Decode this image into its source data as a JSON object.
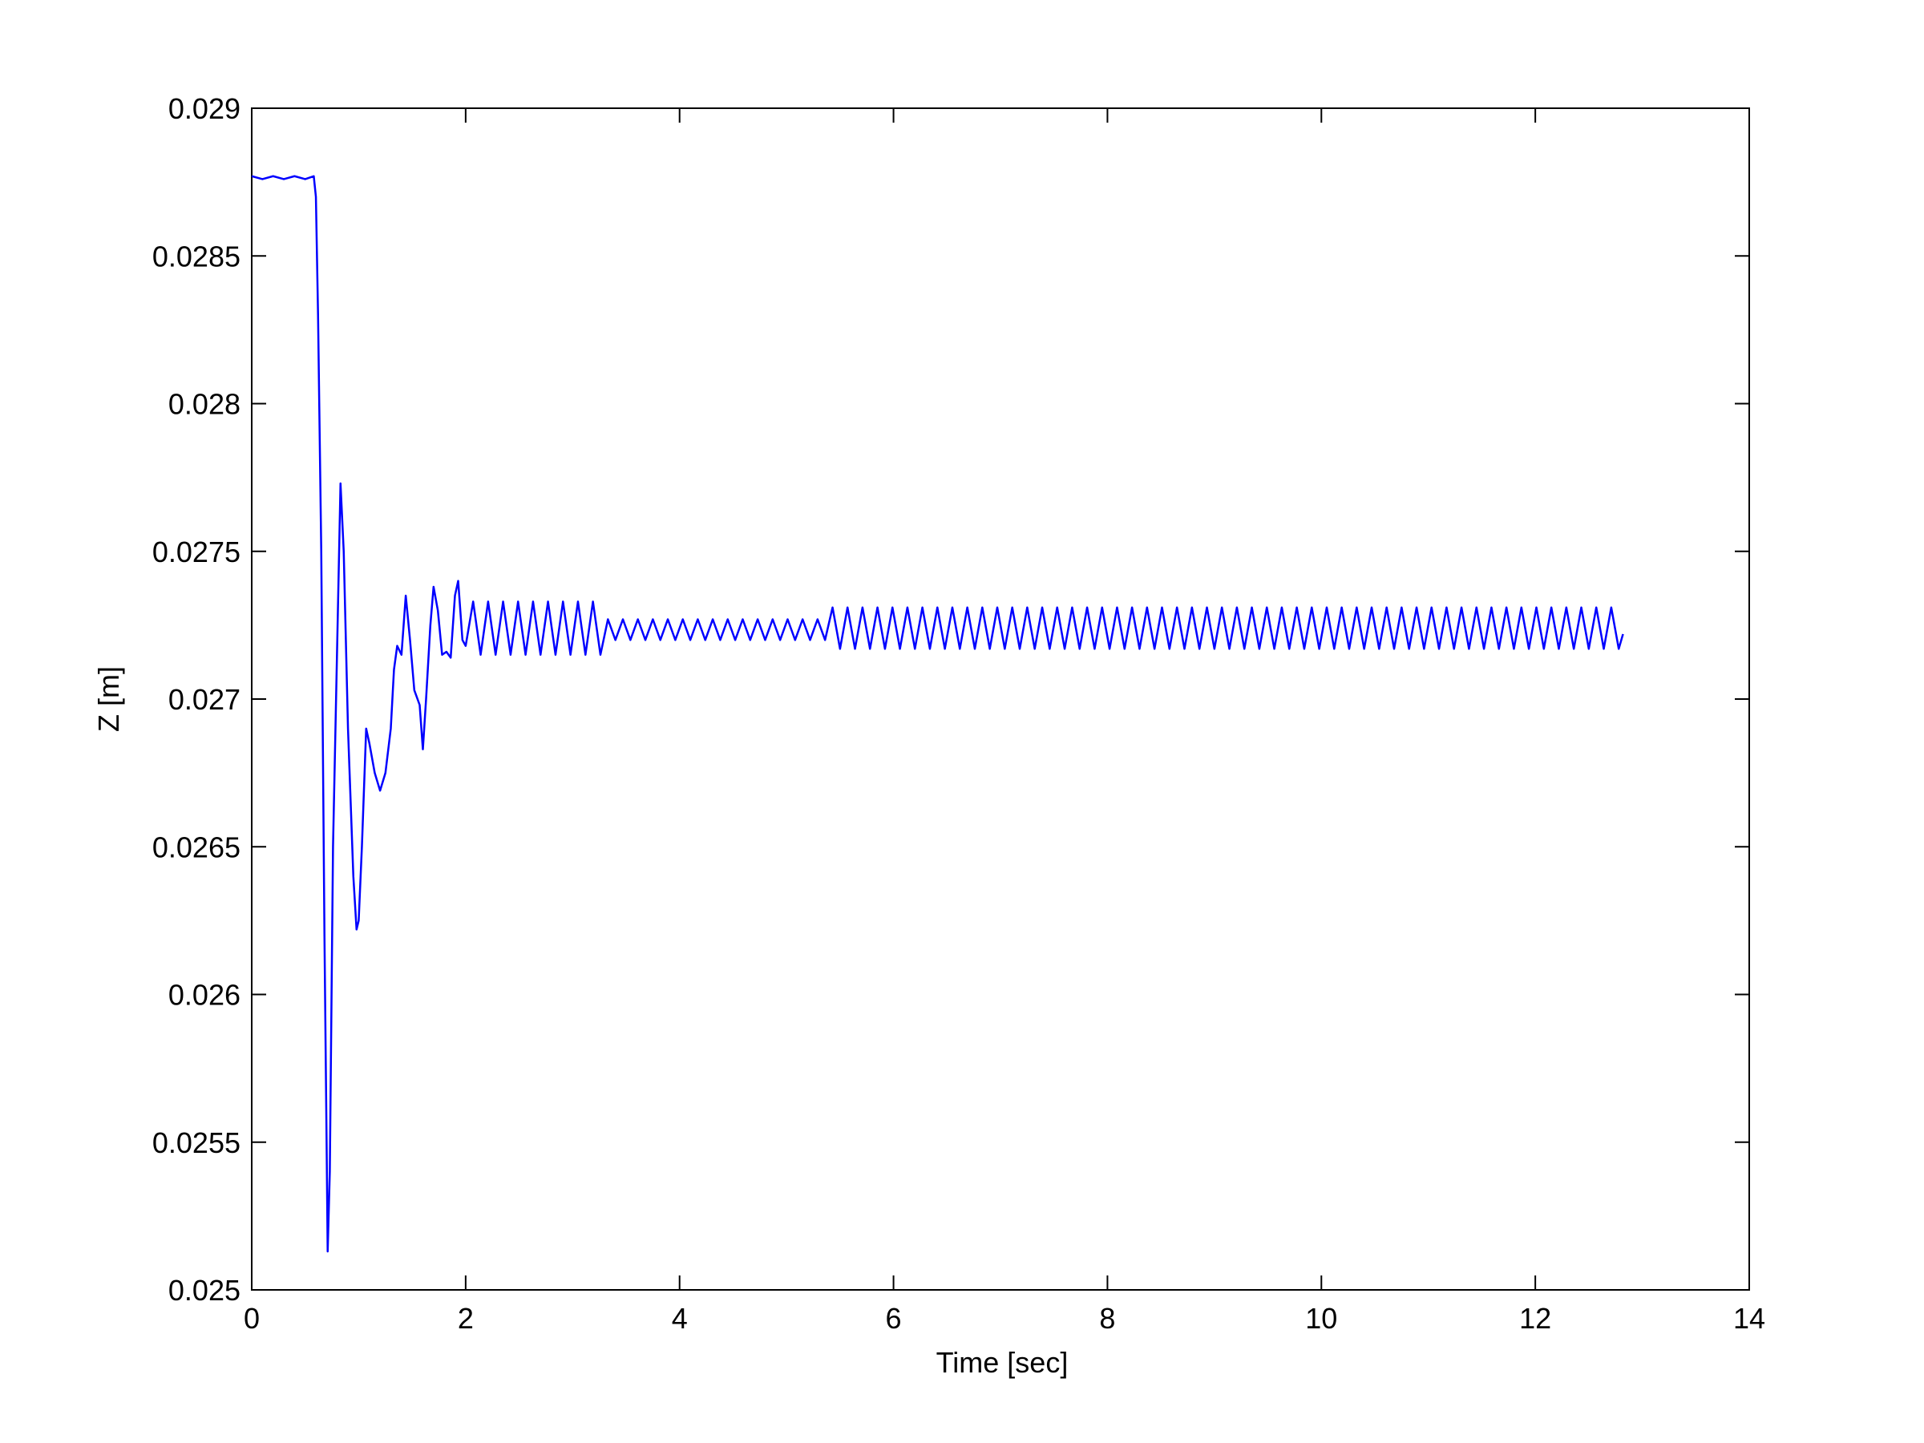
{
  "chart_data": {
    "type": "line",
    "xlabel": "Time [sec]",
    "ylabel": "Z [m]",
    "xlim": [
      0,
      14
    ],
    "xticks": [
      0,
      2,
      4,
      6,
      8,
      10,
      12,
      14
    ],
    "ylim": [
      0.025,
      0.029
    ],
    "yticks": [
      0.025,
      0.0255,
      0.026,
      0.0265,
      0.027,
      0.0275,
      0.028,
      0.0285,
      0.029
    ],
    "grid": false,
    "series": [
      {
        "color": "#0000ff",
        "x": [
          0,
          0.1,
          0.2,
          0.3,
          0.4,
          0.5,
          0.58,
          0.6,
          0.62,
          0.65,
          0.68,
          0.7,
          0.71,
          0.73,
          0.76,
          0.8,
          0.83,
          0.86,
          0.9,
          0.95,
          0.98,
          1.0,
          1.03,
          1.07,
          1.1,
          1.15,
          1.2,
          1.25,
          1.3,
          1.33,
          1.36,
          1.4,
          1.44,
          1.48,
          1.52,
          1.57,
          1.6,
          1.63,
          1.67,
          1.7,
          1.74,
          1.78,
          1.82,
          1.86,
          1.9,
          1.93,
          1.97,
          2.0,
          2.07,
          2.14,
          2.21,
          2.28,
          2.35,
          2.42,
          2.49,
          2.56,
          2.63,
          2.7,
          2.77,
          2.84,
          2.91,
          2.98,
          3.05,
          3.12,
          3.19,
          3.26,
          3.33,
          3.4,
          3.47,
          3.54,
          3.61,
          3.68,
          3.75,
          3.82,
          3.89,
          3.96,
          4.03,
          4.1,
          4.17,
          4.24,
          4.31,
          4.38,
          4.45,
          4.52,
          4.59,
          4.66,
          4.73,
          4.8,
          4.87,
          4.94,
          5.01,
          5.08,
          5.15,
          5.22,
          5.29,
          5.36,
          5.43,
          5.5,
          5.57,
          5.64,
          5.71,
          5.78,
          5.85,
          5.92,
          5.99,
          6.06,
          6.13,
          6.2,
          6.27,
          6.34,
          6.41,
          6.48,
          6.55,
          6.62,
          6.69,
          6.76,
          6.83,
          6.9,
          6.97,
          7.04,
          7.11,
          7.18,
          7.25,
          7.32,
          7.39,
          7.46,
          7.53,
          7.6,
          7.67,
          7.74,
          7.81,
          7.88,
          7.95,
          8.02,
          8.09,
          8.16,
          8.23,
          8.3,
          8.37,
          8.44,
          8.51,
          8.58,
          8.65,
          8.72,
          8.79,
          8.86,
          8.93,
          9.0,
          9.07,
          9.14,
          9.21,
          9.28,
          9.35,
          9.42,
          9.49,
          9.56,
          9.63,
          9.7,
          9.77,
          9.84,
          9.91,
          9.98,
          10.05,
          10.12,
          10.19,
          10.26,
          10.33,
          10.4,
          10.47,
          10.54,
          10.61,
          10.68,
          10.75,
          10.82,
          10.89,
          10.96,
          11.03,
          11.1,
          11.17,
          11.24,
          11.31,
          11.38,
          11.45,
          11.52,
          11.59,
          11.66,
          11.73,
          11.8,
          11.87,
          11.94,
          12.01,
          12.08,
          12.15,
          12.22,
          12.29,
          12.36,
          12.43,
          12.5,
          12.57,
          12.64,
          12.71,
          12.78,
          12.82
        ],
        "values": [
          0.02877,
          0.02876,
          0.02877,
          0.02876,
          0.02877,
          0.02876,
          0.02877,
          0.0287,
          0.0283,
          0.0275,
          0.0262,
          0.0255,
          0.02513,
          0.0254,
          0.0265,
          0.0272,
          0.02773,
          0.0275,
          0.0269,
          0.0264,
          0.02622,
          0.02625,
          0.0265,
          0.0269,
          0.02685,
          0.02675,
          0.02669,
          0.02675,
          0.0269,
          0.0271,
          0.02718,
          0.02715,
          0.02735,
          0.0272,
          0.02703,
          0.02698,
          0.02683,
          0.027,
          0.02725,
          0.02738,
          0.0273,
          0.02715,
          0.02716,
          0.02714,
          0.02735,
          0.0274,
          0.0272,
          0.02718,
          0.02733,
          0.02715,
          0.02733,
          0.02715,
          0.02733,
          0.02715,
          0.02733,
          0.02715,
          0.02733,
          0.02715,
          0.02733,
          0.02715,
          0.02733,
          0.02715,
          0.02733,
          0.02715,
          0.02733,
          0.02715,
          0.02727,
          0.0272,
          0.02727,
          0.0272,
          0.02727,
          0.0272,
          0.02727,
          0.0272,
          0.02727,
          0.0272,
          0.02727,
          0.0272,
          0.02727,
          0.0272,
          0.02727,
          0.0272,
          0.02727,
          0.0272,
          0.02727,
          0.0272,
          0.02727,
          0.0272,
          0.02727,
          0.0272,
          0.02727,
          0.0272,
          0.02727,
          0.0272,
          0.02727,
          0.0272,
          0.02731,
          0.02717,
          0.02731,
          0.02717,
          0.02731,
          0.02717,
          0.02731,
          0.02717,
          0.02731,
          0.02717,
          0.02731,
          0.02717,
          0.02731,
          0.02717,
          0.02731,
          0.02717,
          0.02731,
          0.02717,
          0.02731,
          0.02717,
          0.02731,
          0.02717,
          0.02731,
          0.02717,
          0.02731,
          0.02717,
          0.02731,
          0.02717,
          0.02731,
          0.02717,
          0.02731,
          0.02717,
          0.02731,
          0.02717,
          0.02731,
          0.02717,
          0.02731,
          0.02717,
          0.02731,
          0.02717,
          0.02731,
          0.02717,
          0.02731,
          0.02717,
          0.02731,
          0.02717,
          0.02731,
          0.02717,
          0.02731,
          0.02717,
          0.02731,
          0.02717,
          0.02731,
          0.02717,
          0.02731,
          0.02717,
          0.02731,
          0.02717,
          0.02731,
          0.02717,
          0.02731,
          0.02717,
          0.02731,
          0.02717,
          0.02731,
          0.02717,
          0.02731,
          0.02717,
          0.02731,
          0.02717,
          0.02731,
          0.02717,
          0.02731,
          0.02717,
          0.02731,
          0.02717,
          0.02731,
          0.02717,
          0.02731,
          0.02717,
          0.02731,
          0.02717,
          0.02731,
          0.02717,
          0.02731,
          0.02717,
          0.02731,
          0.02717,
          0.02731,
          0.02717,
          0.02731,
          0.02717,
          0.02731,
          0.02717,
          0.02731,
          0.02717,
          0.02731,
          0.02717,
          0.02731,
          0.02717,
          0.02731,
          0.02717,
          0.02731,
          0.02717,
          0.02731,
          0.02717,
          0.02722
        ]
      }
    ]
  }
}
